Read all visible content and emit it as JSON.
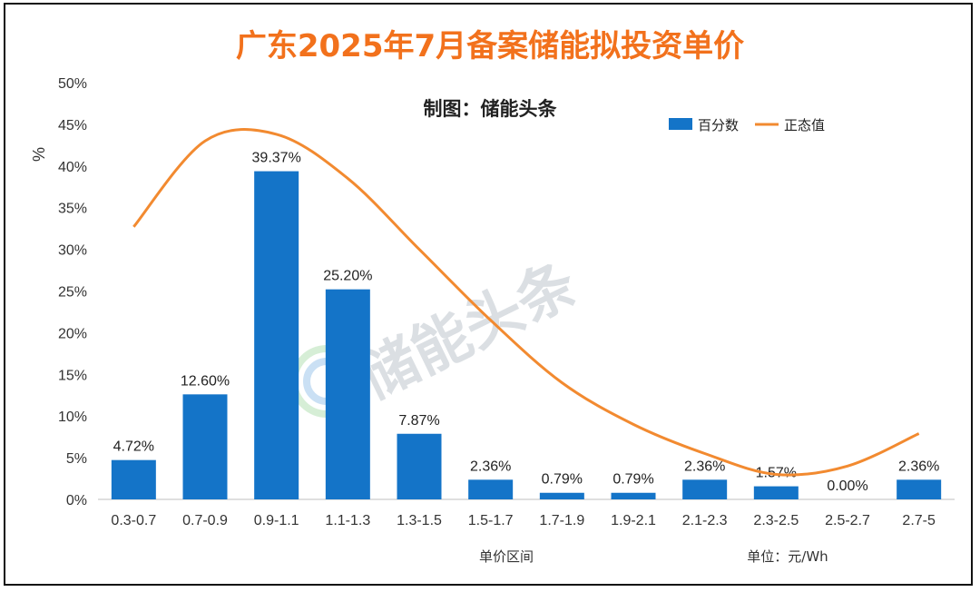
{
  "chart_data": {
    "type": "bar",
    "title": "广东2025年7月备案储能拟投资单价",
    "subtitle": "制图：储能头条",
    "xlabel": "单价区间",
    "ylabel": "%",
    "unit_note": "单位：元/Wh",
    "watermark": "储能头条",
    "categories": [
      "0.3-0.7",
      "0.7-0.9",
      "0.9-1.1",
      "1.1-1.3",
      "1.3-1.5",
      "1.5-1.7",
      "1.7-1.9",
      "1.9-2.1",
      "2.1-2.3",
      "2.3-2.5",
      "2.5-2.7",
      "2.7-5"
    ],
    "ylim": [
      0,
      50
    ],
    "yticks": [
      0,
      5,
      10,
      15,
      20,
      25,
      30,
      35,
      40,
      45,
      50
    ],
    "legend_position": "top-right",
    "series": [
      {
        "name": "百分数",
        "kind": "bar",
        "color": "#1474c8",
        "values": [
          4.72,
          12.6,
          39.37,
          25.2,
          7.87,
          2.36,
          0.79,
          0.79,
          2.36,
          1.57,
          0.0,
          2.36
        ],
        "labels": [
          "4.72%",
          "12.60%",
          "39.37%",
          "25.20%",
          "7.87%",
          "2.36%",
          "0.79%",
          "0.79%",
          "2.36%",
          "1.57%",
          "0.00%",
          "2.36%"
        ]
      },
      {
        "name": "正态值",
        "kind": "line",
        "color": "#f28a30",
        "values": [
          32.7,
          43.0,
          43.8,
          38.5,
          30.0,
          21.5,
          14.0,
          9.0,
          5.5,
          3.0,
          4.0,
          7.9
        ]
      }
    ]
  }
}
